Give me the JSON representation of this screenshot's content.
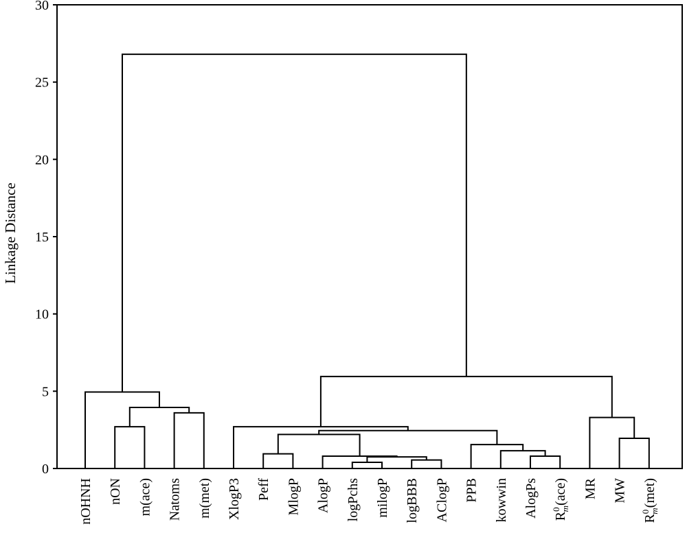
{
  "chart_data": {
    "type": "dendrogram",
    "title": "",
    "ylabel": "Linkage Distance",
    "xlabel": "",
    "ylim": [
      0,
      30
    ],
    "yticks": [
      0,
      5,
      10,
      15,
      20,
      25,
      30
    ],
    "grid": false,
    "leaves": [
      {
        "label": "nOHNH"
      },
      {
        "label": "nON"
      },
      {
        "label": "m(ace)"
      },
      {
        "label": "Natoms"
      },
      {
        "label": "m(met)"
      },
      {
        "label": "XlogP3"
      },
      {
        "label": "Peff"
      },
      {
        "label": "MlogP"
      },
      {
        "label": "AlogP"
      },
      {
        "label": "logPchs"
      },
      {
        "label": "milogP"
      },
      {
        "label": "logBBB"
      },
      {
        "label": "AClogP"
      },
      {
        "label": "PPB"
      },
      {
        "label": "kowwin"
      },
      {
        "label": "AlogPs"
      },
      {
        "label": "R",
        "sup": "0",
        "sub": "m",
        "tail": "(ace)"
      },
      {
        "label": "MR"
      },
      {
        "label": "MW"
      },
      {
        "label": "R",
        "sup": "0",
        "sub": "m",
        "tail": "(met)"
      }
    ],
    "merges": [
      {
        "a": 9,
        "b": 10,
        "distance": 0.4
      },
      {
        "a": 11,
        "b": 12,
        "distance": 0.55
      },
      {
        "a": "m1",
        "b": "m2",
        "distance": 0.75
      },
      {
        "a": 8,
        "b": "m3",
        "distance": 0.8
      },
      {
        "a": 15,
        "b": 16,
        "distance": 0.8
      },
      {
        "a": 6,
        "b": 7,
        "distance": 0.95
      },
      {
        "a": 14,
        "b": "m5",
        "distance": 1.15
      },
      {
        "a": 13,
        "b": "m7",
        "distance": 1.55
      },
      {
        "a": 18,
        "b": 19,
        "distance": 1.95
      },
      {
        "a": "m6",
        "b": "m4",
        "distance": 2.2
      },
      {
        "a": "m10",
        "b": "m8",
        "distance": 2.45
      },
      {
        "a": 1,
        "b": 2,
        "distance": 2.7
      },
      {
        "a": 5,
        "b": "m11",
        "distance": 2.7
      },
      {
        "a": 17,
        "b": "m9",
        "distance": 3.3
      },
      {
        "a": 3,
        "b": 4,
        "distance": 3.6
      },
      {
        "a": "m12",
        "b": "m15",
        "distance": 3.95
      },
      {
        "a": 0,
        "b": "m16",
        "distance": 4.95
      },
      {
        "a": "m13",
        "b": "m14",
        "distance": 5.95
      },
      {
        "a": "m17",
        "b": "m18",
        "distance": 26.8
      }
    ]
  }
}
